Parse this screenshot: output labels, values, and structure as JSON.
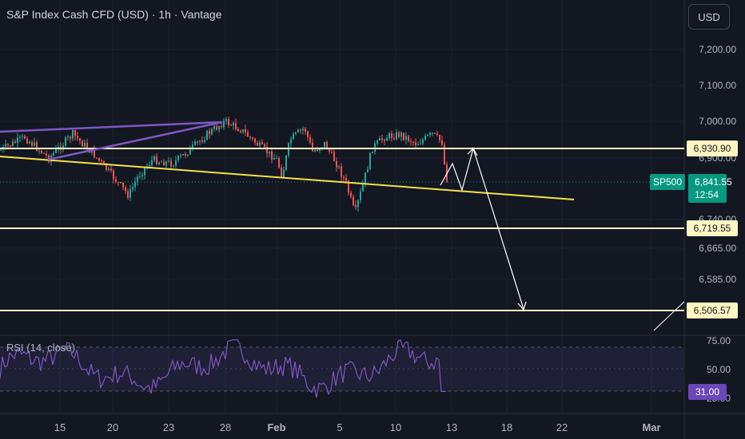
{
  "header": {
    "title": "S&P Index Cash CFD (USD) · 1h · Vantage",
    "currency_button": "USD"
  },
  "colors": {
    "background": "#131722",
    "candle_up": "#26a69a",
    "candle_down": "#ef5350",
    "trend_yellow": "#f5e14a",
    "level_line": "#fff6c2",
    "wedge_purple": "#7e57c2",
    "rsi_line": "#7e57c2",
    "rsi_label_bg": "#6b47b8",
    "price_tag_bg": "#089981",
    "path_arrow": "#ffffff"
  },
  "price_axis": {
    "ticks": [
      {
        "value": 7200,
        "label": "7,200.00"
      },
      {
        "value": 7100,
        "label": "7,100.00"
      },
      {
        "value": 7000,
        "label": "7,000.00"
      },
      {
        "value": 6900,
        "label": "6,900.00"
      },
      {
        "value": 6740,
        "label": "6,740.00"
      },
      {
        "value": 6665,
        "label": "6,665.00"
      },
      {
        "value": 6585,
        "label": "6,585.00"
      }
    ],
    "levels": [
      {
        "value": 6930.9,
        "label": "6,930.90"
      },
      {
        "value": 6719.55,
        "label": "6,719.55"
      },
      {
        "value": 6506.57,
        "label": "6,506.57"
      }
    ],
    "current": {
      "symbol": "SP500",
      "price": "6,841.55",
      "countdown": "12:54",
      "value": 6841.55
    }
  },
  "time_axis": {
    "labels": [
      {
        "label": "15",
        "bold": false
      },
      {
        "label": "20",
        "bold": false
      },
      {
        "label": "23",
        "bold": false
      },
      {
        "label": "28",
        "bold": false
      },
      {
        "label": "Feb",
        "bold": true
      },
      {
        "label": "5",
        "bold": false
      },
      {
        "label": "10",
        "bold": false
      },
      {
        "label": "13",
        "bold": false
      },
      {
        "label": "18",
        "bold": false
      },
      {
        "label": "22",
        "bold": false
      },
      {
        "label": "Mar",
        "bold": true
      }
    ]
  },
  "rsi": {
    "title": "RSI (14, close)",
    "ticks": [
      {
        "value": 75,
        "label": "75.00"
      },
      {
        "value": 50,
        "label": "50.00"
      },
      {
        "value": 25,
        "label": "25.00"
      }
    ],
    "current_label": "31.00",
    "current_value": 31,
    "band": [
      30,
      70
    ]
  },
  "chart_data": [
    {
      "type": "candlestick",
      "title": "S&P Index Cash CFD (USD) · 1h · Vantage",
      "x_labels": [
        "15",
        "20",
        "23",
        "28",
        "Feb",
        "5",
        "10",
        "13",
        "18",
        "22",
        "Mar"
      ],
      "y_unit": "USD",
      "approx_path": [
        {
          "x": "12 Jan",
          "y": 6950
        },
        {
          "x": "14 Jan",
          "y": 6985
        },
        {
          "x": "16 Jan",
          "y": 6955
        },
        {
          "x": "20 Jan",
          "y": 6820
        },
        {
          "x": "21 Jan",
          "y": 6800
        },
        {
          "x": "23 Jan",
          "y": 6915
        },
        {
          "x": "27 Jan",
          "y": 6970
        },
        {
          "x": "28 Jan",
          "y": 7005
        },
        {
          "x": "30 Jan",
          "y": 6935
        },
        {
          "x": "2 Feb",
          "y": 6955
        },
        {
          "x": "4 Feb",
          "y": 6920
        },
        {
          "x": "5 Feb",
          "y": 6850
        },
        {
          "x": "6 Feb",
          "y": 6750
        },
        {
          "x": "9 Feb",
          "y": 6960
        },
        {
          "x": "11 Feb",
          "y": 6985
        },
        {
          "x": "12 Feb",
          "y": 6965
        },
        {
          "x": "12 Feb",
          "y": 6830
        },
        {
          "x": "13 Feb",
          "y": 6841.55
        }
      ],
      "horizontal_levels": [
        6930.9,
        6719.55,
        6506.57
      ],
      "projection_path": [
        6841.55,
        6900,
        6841.55,
        6930.9,
        6506.57
      ]
    },
    {
      "type": "line",
      "title": "RSI (14, close)",
      "ylim": [
        20,
        80
      ],
      "band": [
        30,
        70
      ],
      "last": 31.0
    }
  ]
}
